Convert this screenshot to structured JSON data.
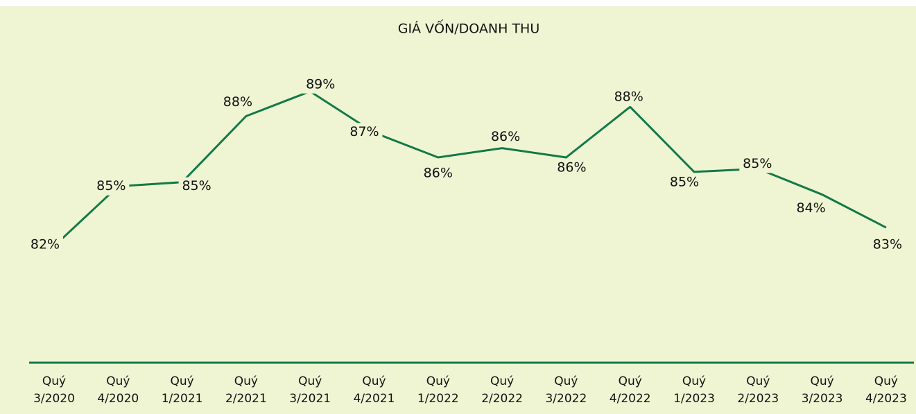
{
  "chart_data": {
    "type": "line",
    "title": "GIÁ VỐN/DOANH THU",
    "categories": [
      "Quý 3/2020",
      "Quý 4/2020",
      "Quý 1/2021",
      "Quý 2/2021",
      "Quý 3/2021",
      "Quý 4/2021",
      "Quý 1/2022",
      "Quý 2/2022",
      "Quý 3/2022",
      "Quý 4/2022",
      "Quý 1/2023",
      "Quý 2/2023",
      "Quý 3/2023",
      "Quý 4/2023"
    ],
    "series": [
      {
        "name": "Giá vốn/Doanh thu",
        "color": "#127a47",
        "values": [
          81.7,
          84.6,
          84.8,
          88.0,
          89.2,
          87.2,
          86.0,
          86.45,
          86.0,
          88.45,
          85.3,
          85.45,
          84.2,
          82.6
        ],
        "value_labels": [
          "82%",
          "85%",
          "85%",
          "88%",
          "89%",
          "87%",
          "86%",
          "86%",
          "86%",
          "88%",
          "85%",
          "85%",
          "84%",
          "83%"
        ]
      }
    ],
    "ylim": [
      78,
      90
    ]
  }
}
